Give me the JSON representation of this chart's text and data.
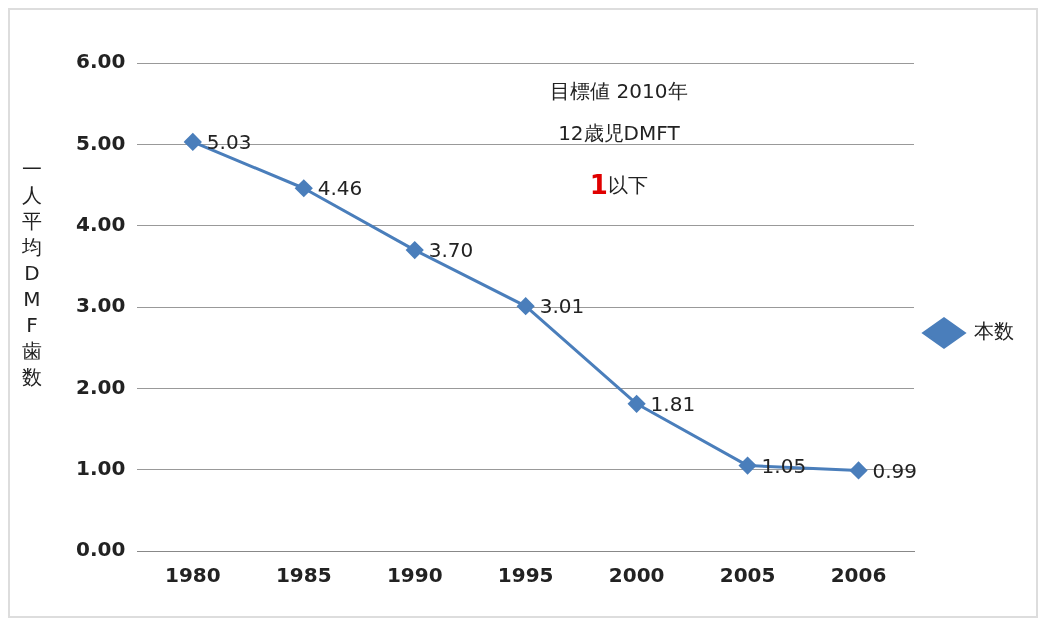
{
  "chart_data": {
    "type": "line",
    "ylabel": "一人平均DMF歯数",
    "categories": [
      "1980",
      "1985",
      "1990",
      "1995",
      "2000",
      "2005",
      "2006"
    ],
    "series": [
      {
        "name": "本数",
        "color": "#4a7ebb",
        "values": [
          5.03,
          4.46,
          3.7,
          3.01,
          1.81,
          1.05,
          0.99
        ]
      }
    ],
    "ylim": [
      0,
      6
    ],
    "yticks": [
      {
        "value": 0,
        "label": "0.00"
      },
      {
        "value": 1,
        "label": "1.00"
      },
      {
        "value": 2,
        "label": "2.00"
      },
      {
        "value": 3,
        "label": "3.00"
      },
      {
        "value": 4,
        "label": "4.00"
      },
      {
        "value": 5,
        "label": "5.00"
      },
      {
        "value": 6,
        "label": "6.00"
      }
    ],
    "value_labels": [
      "5.03",
      "4.46",
      "3.70",
      "3.01",
      "1.81",
      "1.05",
      "0.99"
    ],
    "annotations": [
      "目標値 2010年",
      "12歳児DMFT",
      "1以下"
    ],
    "grid": "y",
    "legend": "right",
    "marker": "diamond",
    "line_style": "solid"
  }
}
